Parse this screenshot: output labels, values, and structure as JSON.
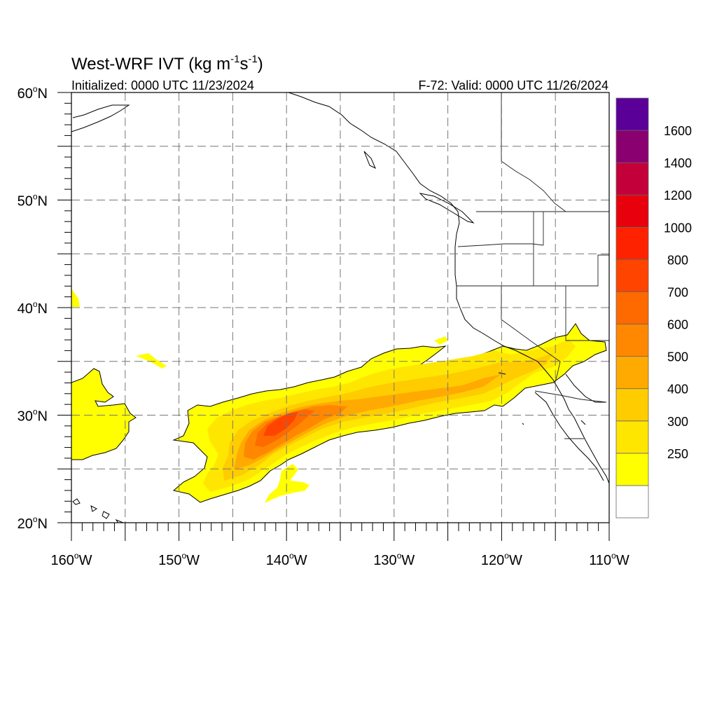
{
  "title": {
    "main": "West-WRF IVT (kg m",
    "sup1": "-1",
    "mid": "s",
    "sup2": "-1",
    "end": ")"
  },
  "init_text": "Initialized: 0000 UTC 11/23/2024",
  "valid_text": "F-72: Valid: 0000 UTC 11/26/2024",
  "map": {
    "lon_range": [
      -160,
      -110
    ],
    "lat_range": [
      20,
      60
    ],
    "grid": true,
    "grid_style": "dashed"
  },
  "lat_labels": [
    {
      "value": 60,
      "num": "60",
      "unit": "N"
    },
    {
      "value": 50,
      "num": "50",
      "unit": "N"
    },
    {
      "value": 40,
      "num": "40",
      "unit": "N"
    },
    {
      "value": 30,
      "num": "30",
      "unit": "N"
    },
    {
      "value": 20,
      "num": "20",
      "unit": "N"
    }
  ],
  "lon_labels": [
    {
      "value": -160,
      "num": "160",
      "unit": "W"
    },
    {
      "value": -150,
      "num": "150",
      "unit": "W"
    },
    {
      "value": -140,
      "num": "140",
      "unit": "W"
    },
    {
      "value": -130,
      "num": "130",
      "unit": "W"
    },
    {
      "value": -120,
      "num": "120",
      "unit": "W"
    },
    {
      "value": -110,
      "num": "110",
      "unit": "W"
    }
  ],
  "colorbar": {
    "levels": [
      {
        "color": "#ffffff",
        "label": ""
      },
      {
        "color": "#ffff00",
        "label": "250"
      },
      {
        "color": "#ffe600",
        "label": "300"
      },
      {
        "color": "#ffcc00",
        "label": "400"
      },
      {
        "color": "#ffaa00",
        "label": "500"
      },
      {
        "color": "#ff8800",
        "label": "600"
      },
      {
        "color": "#ff6a00",
        "label": "700"
      },
      {
        "color": "#ff4400",
        "label": "800"
      },
      {
        "color": "#ff2200",
        "label": "1000"
      },
      {
        "color": "#e8000d",
        "label": "1200"
      },
      {
        "color": "#c4003a",
        "label": "1400"
      },
      {
        "color": "#8a0070",
        "label": "1600"
      },
      {
        "color": "#5a0099",
        "label": ""
      }
    ]
  },
  "colors": {
    "ivt_250": "#ffff00",
    "ivt_300": "#ffe600",
    "ivt_400": "#ffcc00",
    "ivt_500": "#ffaa00",
    "ivt_600": "#ff8800",
    "ivt_700": "#ff6a00",
    "ivt_800": "#ff4400",
    "coast": "#000000",
    "grid": "#777777"
  }
}
